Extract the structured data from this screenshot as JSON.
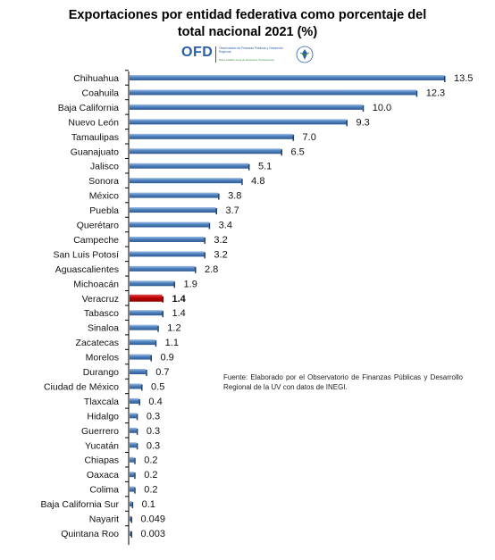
{
  "title_line1": "Exportaciones por entidad federativa como porcentaje del",
  "title_line2": "total nacional  2021 (%)",
  "logo": {
    "acronym": "OFD",
    "name": "Observatorio de Finanzas Públicas y Desarrollo Regional",
    "tagline": "Datos Análisis Toma de decisiones Transparencia"
  },
  "source_note": "Fuente: Elaborado por el Observatorio de Finanzas Públicas y Desarrollo Regional de la UV con datos de INEGI.",
  "colors": {
    "bar": "#4f81bd",
    "bar_highlight": "#c00000",
    "axis": "#000000"
  },
  "chart_data": {
    "type": "bar",
    "orientation": "horizontal",
    "title": "Exportaciones por entidad federativa como porcentaje del total nacional  2021 (%)",
    "highlight": "Veracruz",
    "categories": [
      "Chihuahua",
      "Coahuila",
      "Baja California",
      "Nuevo León",
      "Tamaulipas",
      "Guanajuato",
      "Jalisco",
      "Sonora",
      "México",
      "Puebla",
      "Querétaro",
      "Campeche",
      "San Luis Potosí",
      "Aguascalientes",
      "Michoacán",
      "Veracruz",
      "Tabasco",
      "Sinaloa",
      "Zacatecas",
      "Morelos",
      "Durango",
      "Ciudad de México",
      "Tlaxcala",
      "Hidalgo",
      "Guerrero",
      "Yucatán",
      "Chiapas",
      "Oaxaca",
      "Colima",
      "Baja California Sur",
      "Nayarit",
      "Quintana Roo"
    ],
    "values": [
      13.5,
      12.3,
      10.0,
      9.3,
      7.0,
      6.5,
      5.1,
      4.8,
      3.8,
      3.7,
      3.4,
      3.2,
      3.2,
      2.8,
      1.9,
      1.4,
      1.4,
      1.2,
      1.1,
      0.9,
      0.7,
      0.5,
      0.4,
      0.3,
      0.3,
      0.3,
      0.2,
      0.2,
      0.2,
      0.1,
      0.049,
      0.003
    ],
    "value_labels": [
      "13.5",
      "12.3",
      "10.0",
      "9.3",
      "7.0",
      "6.5",
      "5.1",
      "4.8",
      "3.8",
      "3.7",
      "3.4",
      "3.2",
      "3.2",
      "2.8",
      "1.9",
      "1.4",
      "1.4",
      "1.2",
      "1.1",
      "0.9",
      "0.7",
      "0.5",
      "0.4",
      "0.3",
      "0.3",
      "0.3",
      "0.2",
      "0.2",
      "0.2",
      "0.1",
      "0.049",
      "0.003"
    ],
    "xlim": [
      0,
      13.5
    ],
    "grid": false,
    "legend": "none"
  }
}
